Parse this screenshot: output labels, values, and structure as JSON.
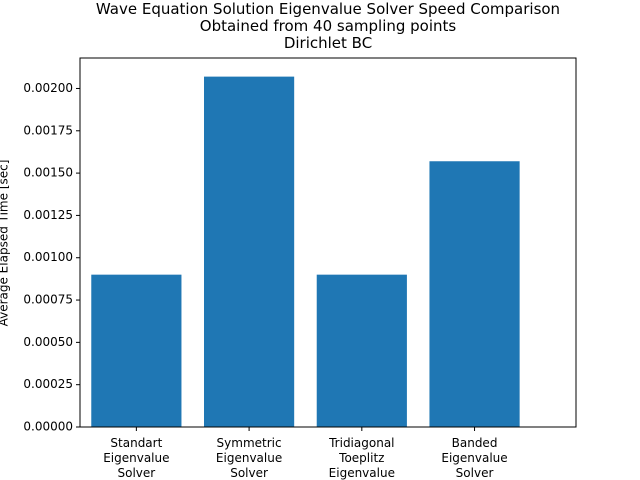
{
  "chart_data": {
    "type": "bar",
    "title_lines": [
      "Wave Equation Solution Eigenvalue Solver Speed Comparison",
      "Obtained from 40 sampling points",
      "Dirichlet BC"
    ],
    "xlabel": "",
    "ylabel": "Average Elapsed Time [sec]",
    "categories": [
      [
        "Standart",
        "Eigenvalue",
        "Solver"
      ],
      [
        "Symmetric",
        "Eigenvalue",
        "Solver"
      ],
      [
        "Tridiagonal",
        "Toeplitz",
        "Eigenvalue"
      ],
      [
        "Banded",
        "Eigenvalue",
        "Solver"
      ]
    ],
    "values": [
      0.0009,
      0.00207,
      0.0009,
      0.00157
    ],
    "ylim": [
      0,
      0.00218
    ],
    "yticks": [
      0,
      0.00025,
      0.0005,
      0.00075,
      0.001,
      0.00125,
      0.0015,
      0.00175,
      0.002
    ],
    "ytick_labels": [
      "0.00000",
      "0.00025",
      "0.00050",
      "0.00075",
      "0.00100",
      "0.00125",
      "0.00150",
      "0.00175",
      "0.00200"
    ],
    "bar_color": "#1f77b4",
    "grid": false,
    "legend": "none"
  }
}
